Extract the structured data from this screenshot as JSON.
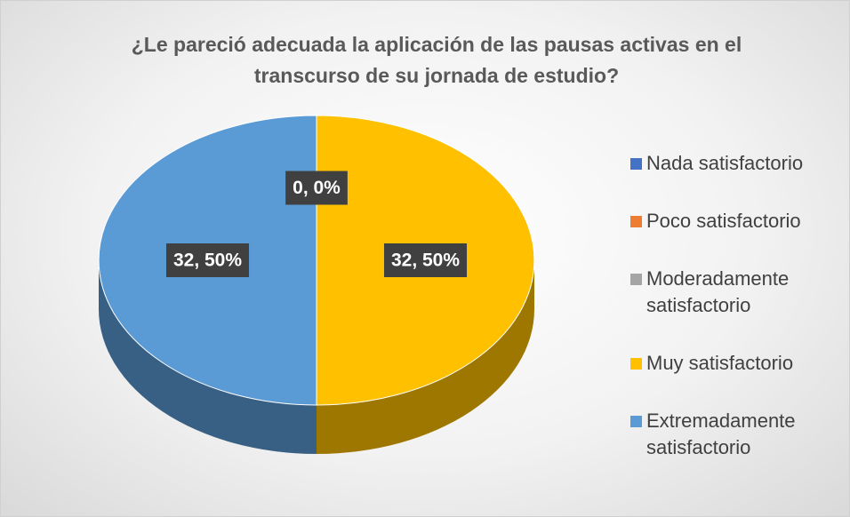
{
  "chart_data": {
    "type": "pie",
    "title": "¿Le pareció adecuada la aplicación de las pausas activas en el transcurso de su jornada de estudio?",
    "categories": [
      "Nada satisfactorio",
      "Poco satisfactorio",
      "Moderadamente satisfactorio",
      "Muy satisfactorio",
      "Extremadamente satisfactorio"
    ],
    "values": [
      0,
      0,
      0,
      32,
      32
    ],
    "value_labels": [
      "0, 0%",
      null,
      null,
      "32, 50%",
      "32, 50%"
    ],
    "colors": [
      "#4472c4",
      "#ed7d31",
      "#a5a5a5",
      "#ffc000",
      "#5b9bd5"
    ],
    "legend": "right"
  }
}
